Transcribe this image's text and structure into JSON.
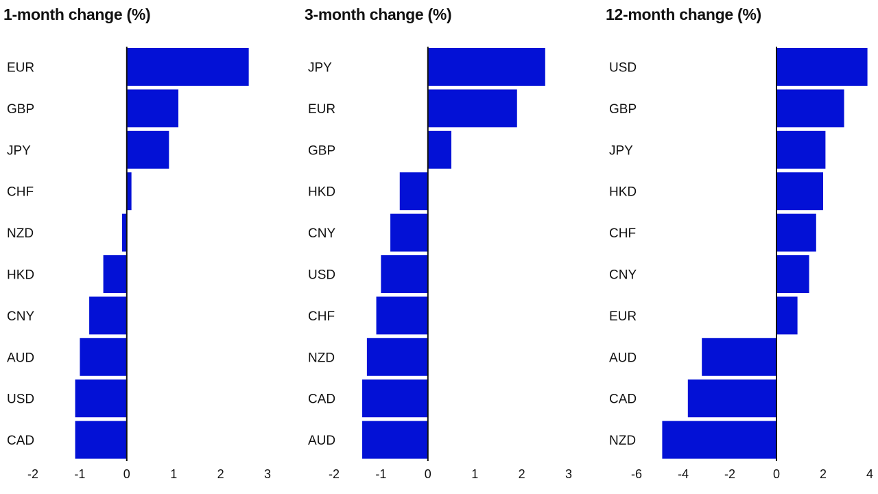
{
  "chart_data": [
    {
      "type": "bar",
      "orientation": "horizontal",
      "title": "1-month change (%)",
      "categories": [
        "EUR",
        "GBP",
        "JPY",
        "CHF",
        "NZD",
        "HKD",
        "CNY",
        "AUD",
        "USD",
        "CAD"
      ],
      "values": [
        2.6,
        1.1,
        0.9,
        0.1,
        -0.1,
        -0.5,
        -0.8,
        -1.0,
        -1.1,
        -1.1
      ],
      "xlim": [
        -2,
        3
      ],
      "xticks": [
        -2,
        -1,
        0,
        1,
        2,
        3
      ],
      "grid": false,
      "legend": false
    },
    {
      "type": "bar",
      "orientation": "horizontal",
      "title": "3-month change (%)",
      "categories": [
        "JPY",
        "EUR",
        "GBP",
        "HKD",
        "CNY",
        "USD",
        "CHF",
        "NZD",
        "CAD",
        "AUD"
      ],
      "values": [
        2.5,
        1.9,
        0.5,
        -0.6,
        -0.8,
        -1.0,
        -1.1,
        -1.3,
        -1.4,
        -1.4
      ],
      "xlim": [
        -2,
        3
      ],
      "xticks": [
        -2,
        -1,
        0,
        1,
        2,
        3
      ],
      "grid": false,
      "legend": false
    },
    {
      "type": "bar",
      "orientation": "horizontal",
      "title": "12-month change (%)",
      "categories": [
        "USD",
        "GBP",
        "JPY",
        "HKD",
        "CHF",
        "CNY",
        "EUR",
        "AUD",
        "CAD",
        "NZD"
      ],
      "values": [
        3.9,
        2.9,
        2.1,
        2.0,
        1.7,
        1.4,
        0.9,
        -3.2,
        -3.8,
        -4.9
      ],
      "xlim": [
        -6,
        4
      ],
      "xticks": [
        -6,
        -4,
        -2,
        0,
        2,
        4
      ],
      "grid": false,
      "legend": false
    }
  ],
  "colors": {
    "bar": "#0311d6",
    "axis": "#111111",
    "text": "#111111"
  }
}
